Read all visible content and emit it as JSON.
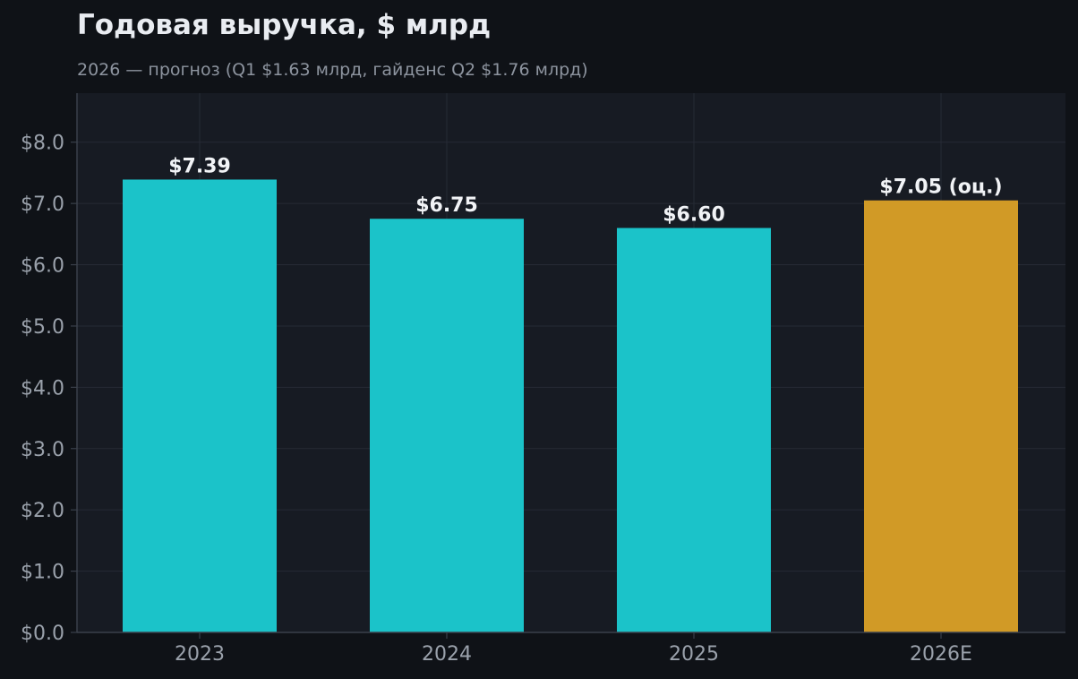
{
  "chart_data": {
    "type": "bar",
    "title": "Годовая выручка, $ млрд",
    "subtitle": "2026 — прогноз (Q1 $1.63 млрд, гайденс Q2 $1.76 млрд)",
    "xlabel": "",
    "ylabel": "",
    "categories": [
      "2023",
      "2024",
      "2025",
      "2026E"
    ],
    "values": [
      7.39,
      6.75,
      6.6,
      7.05
    ],
    "value_labels": [
      "$7.39",
      "$6.75",
      "$6.60",
      "$7.05 (оц.)"
    ],
    "forecast": [
      false,
      false,
      false,
      true
    ],
    "ylim": [
      0,
      8.8
    ],
    "yticks": [
      0,
      1,
      2,
      3,
      4,
      5,
      6,
      7,
      8
    ],
    "ytick_labels": [
      "$0.0",
      "$1.0",
      "$2.0",
      "$3.0",
      "$4.0",
      "$5.0",
      "$6.0",
      "$7.0",
      "$8.0"
    ],
    "grid": true,
    "colors": {
      "actual": "#1bc3c9",
      "forecast": "#d19a26",
      "page_bg": "#0f1217",
      "plot_bg": "#171b23",
      "grid": "#262b35",
      "title": "#e9ecf1",
      "subtitle": "#8d949f",
      "tick": "#9aa1ab",
      "value_label": "#f1f3f6"
    }
  }
}
